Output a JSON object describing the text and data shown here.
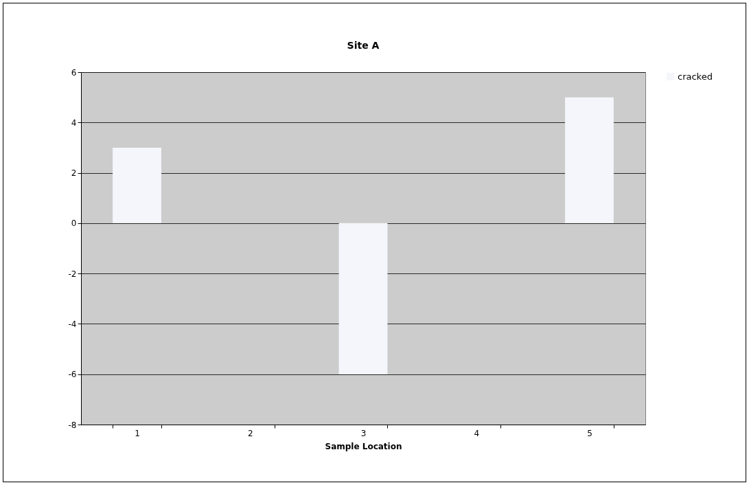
{
  "chart_data": {
    "type": "bar",
    "title": "Site A",
    "xlabel": "Sample Location",
    "categories": [
      "1",
      "2",
      "3",
      "4",
      "5"
    ],
    "series": [
      {
        "name": "cracked",
        "color": "#f4f6fb",
        "values": [
          3,
          null,
          -6,
          null,
          5
        ]
      }
    ],
    "ylim": [
      -8,
      6
    ],
    "yticks": [
      -8,
      -6,
      -4,
      -2,
      0,
      2,
      4,
      6
    ],
    "grid": "y",
    "legend": "right"
  }
}
